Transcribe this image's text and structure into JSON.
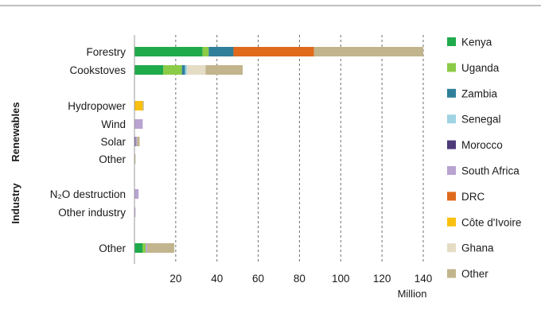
{
  "chart_data": {
    "type": "bar",
    "orientation": "horizontal",
    "stacked": true,
    "title": "",
    "xlabel": "Million",
    "ylabel": "",
    "xlim": [
      0,
      140
    ],
    "xticks": [
      20,
      40,
      60,
      80,
      100,
      120,
      140
    ],
    "grid": "vertical dashed",
    "legend_position": "right",
    "groups": [
      {
        "label": "",
        "categories": [
          "Forestry",
          "Cookstoves"
        ]
      },
      {
        "label": "Renewables",
        "categories": [
          "Hydropower",
          "Wind",
          "Solar",
          "Other"
        ]
      },
      {
        "label": "Industry",
        "categories": [
          "N₂O destruction",
          "Other industry"
        ]
      },
      {
        "label": "",
        "categories": [
          "Other"
        ]
      }
    ],
    "categories": [
      "Forestry",
      "Cookstoves",
      "Hydropower",
      "Wind",
      "Solar",
      "Other",
      "N₂O destruction",
      "Other industry",
      "Other"
    ],
    "series": [
      {
        "name": "Kenya",
        "color": "#1faa4b",
        "values": [
          33,
          14,
          0,
          0,
          0,
          0,
          0,
          0,
          4
        ]
      },
      {
        "name": "Uganda",
        "color": "#8ccb47",
        "values": [
          3,
          9,
          0,
          0,
          0,
          0,
          0,
          0,
          1.5
        ]
      },
      {
        "name": "Zambia",
        "color": "#2f7f9a",
        "values": [
          12,
          1.5,
          0,
          0,
          0,
          0,
          0,
          0,
          0
        ]
      },
      {
        "name": "Senegal",
        "color": "#9fd4e3",
        "values": [
          0,
          1,
          0,
          0,
          0,
          0,
          0,
          0,
          0
        ]
      },
      {
        "name": "Morocco",
        "color": "#4d3a7a",
        "values": [
          0,
          0,
          0,
          0,
          0.5,
          0,
          0,
          0,
          0
        ]
      },
      {
        "name": "South Africa",
        "color": "#b8a3d1",
        "values": [
          0,
          0,
          0,
          4,
          0.8,
          0,
          2,
          0.5,
          0.8
        ]
      },
      {
        "name": "DRC",
        "color": "#e06a1c",
        "values": [
          39,
          0,
          0,
          0,
          0,
          0,
          0,
          0,
          0
        ]
      },
      {
        "name": "Côte d'Ivoire",
        "color": "#f9c010",
        "values": [
          0,
          0,
          4,
          0,
          0,
          0,
          0,
          0,
          0
        ]
      },
      {
        "name": "Ghana",
        "color": "#e4dcc4",
        "values": [
          0,
          9,
          0,
          0,
          0,
          0,
          0,
          0,
          0
        ]
      },
      {
        "name": "Other",
        "color": "#c2b48c",
        "values": [
          53,
          18,
          0.5,
          0,
          1.2,
          0.5,
          0,
          0,
          13
        ]
      }
    ]
  }
}
